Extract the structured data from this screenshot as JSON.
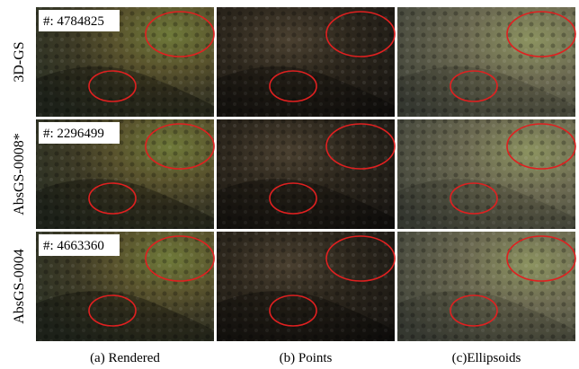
{
  "rows": [
    {
      "label": "3D-GS",
      "count": "#: 4784825"
    },
    {
      "label": "AbsGS-0008*",
      "count": "#: 2296499"
    },
    {
      "label": "AbsGS-0004",
      "count": "#: 4663360"
    }
  ],
  "columns": [
    "(a) Rendered",
    "(b) Points",
    "(c)Ellipsoids"
  ]
}
